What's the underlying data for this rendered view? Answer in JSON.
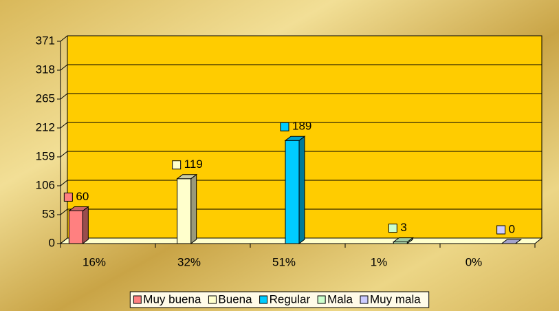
{
  "chart_data": {
    "type": "bar3d",
    "categories": [
      "16%",
      "32%",
      "51%",
      "1%",
      "0%"
    ],
    "series": [
      {
        "name": "Muy buena",
        "color": "#ff8080",
        "values": [
          60,
          null,
          null,
          null,
          null
        ]
      },
      {
        "name": "Buena",
        "color": "#ffffcc",
        "values": [
          null,
          119,
          null,
          null,
          null
        ]
      },
      {
        "name": "Regular",
        "color": "#00ccff",
        "values": [
          null,
          null,
          189,
          null,
          null
        ]
      },
      {
        "name": "Mala",
        "color": "#ccffcc",
        "values": [
          null,
          null,
          null,
          3,
          null
        ]
      },
      {
        "name": "Muy mala",
        "color": "#ccccff",
        "values": [
          null,
          null,
          null,
          null,
          0
        ]
      }
    ],
    "ylim": [
      0,
      371
    ],
    "yticks": [
      0,
      53,
      106,
      159,
      212,
      265,
      318,
      371
    ],
    "grid": true,
    "legend": "bottom"
  }
}
